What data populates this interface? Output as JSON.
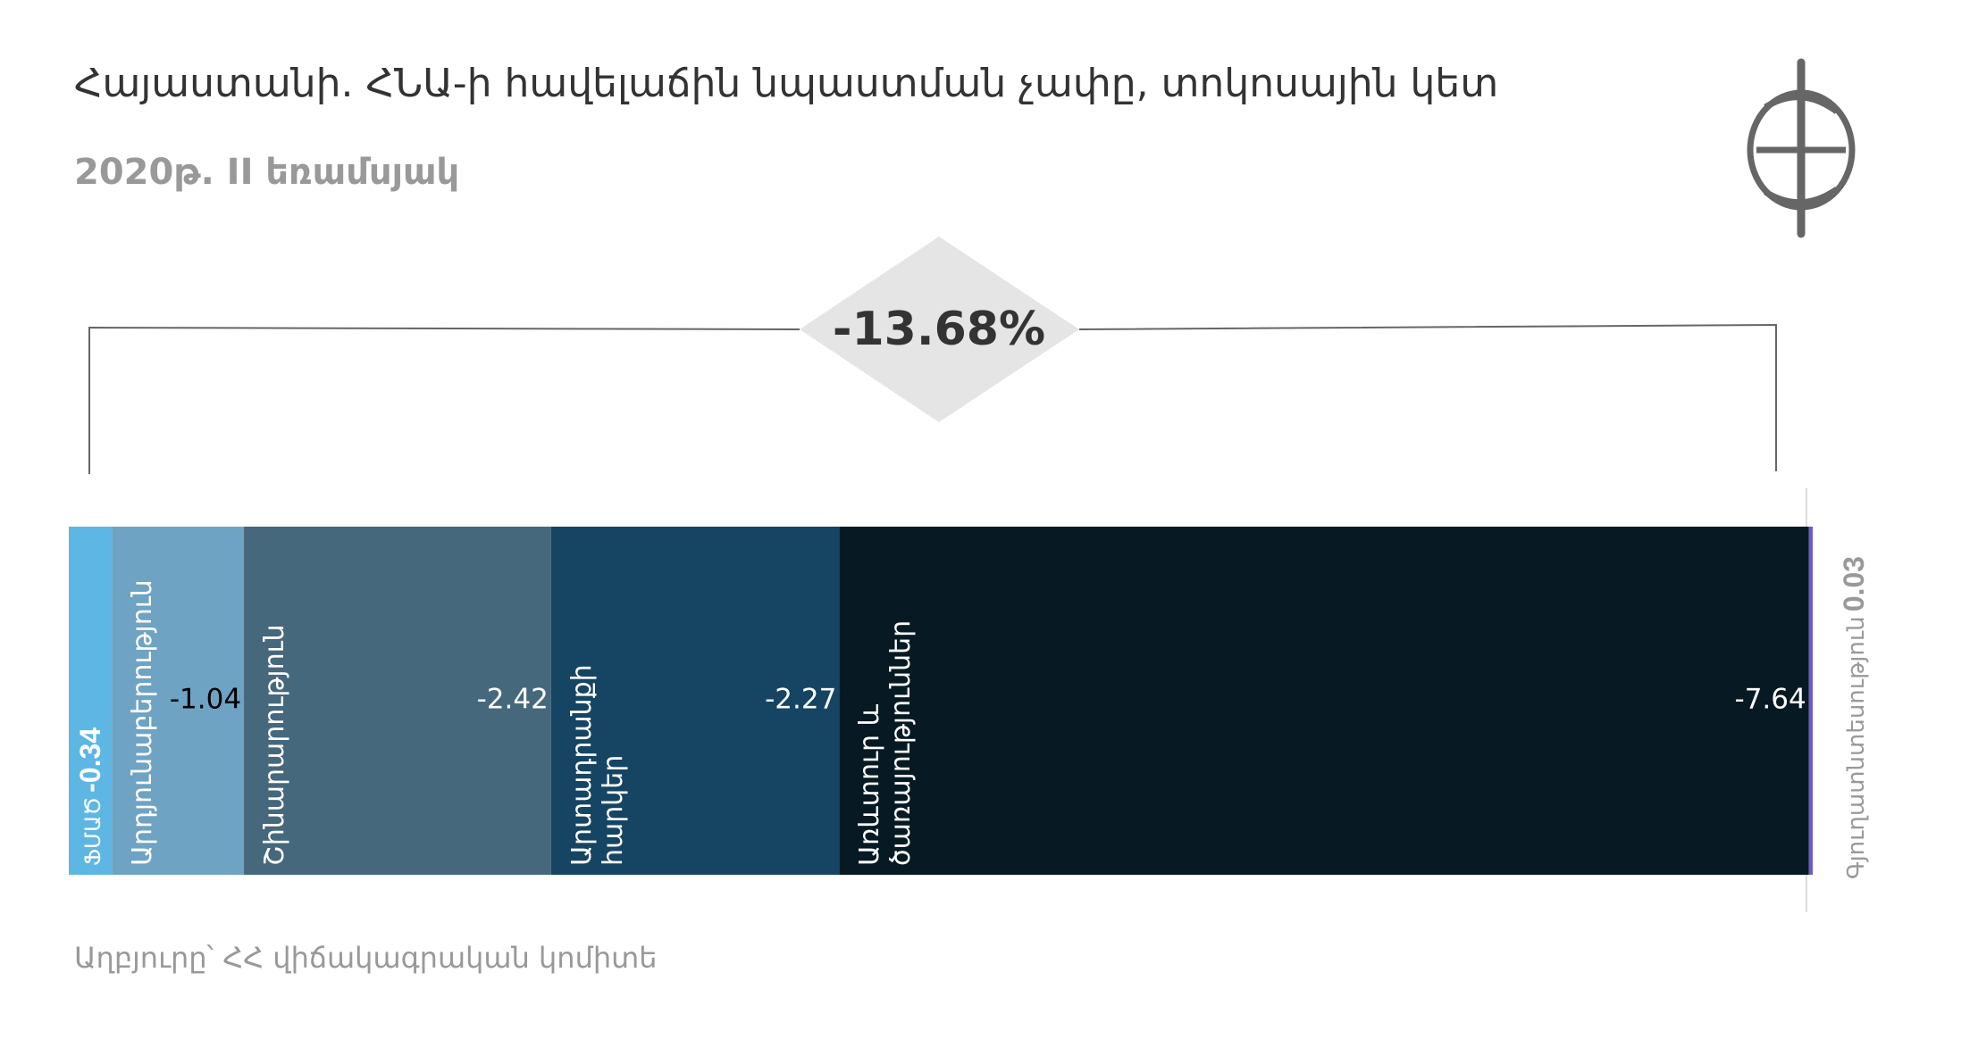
{
  "chart_data": {
    "type": "bar",
    "orientation": "horizontal",
    "stacked": true,
    "title": "Հայաստանի. ՀՆԱ-ի հավելաճին նպաստման չափը, տոկոսային կետ",
    "subtitle": "2020թ. II եռամսյակ",
    "source": "Աղբյուրը՝ ՀՀ վիճակագրական կոմիտե",
    "categories": [
      "ՖՄԱԾ",
      "Արդյունաբերություն",
      "Շինարարություն",
      "Արտադրանքի հարկեր",
      "Առևտուր և ծառայություններ",
      "Գյուղատնտեսություն"
    ],
    "values": [
      -0.34,
      -1.04,
      -2.42,
      -2.27,
      -7.64,
      0.03
    ],
    "colors": [
      "#5db6e4",
      "#6ea3c4",
      "#46687c",
      "#154563",
      "#071923",
      "#6a5acd"
    ],
    "total": {
      "value": -13.68,
      "label": "-13.68%"
    }
  }
}
